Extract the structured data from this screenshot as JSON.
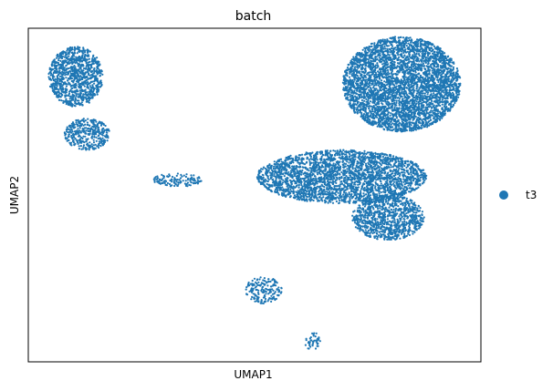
{
  "chart_data": {
    "type": "scatter",
    "title": "batch",
    "xlabel": "UMAP1",
    "ylabel": "UMAP2",
    "xlim": [
      0,
      100
    ],
    "ylim": [
      0,
      100
    ],
    "grid": false,
    "xticks": [],
    "yticks": [],
    "legend_position": "right",
    "series": [
      {
        "name": "t3",
        "color": "#1f77b4",
        "clusters": [
          {
            "id": "top-left-upper",
            "x": [
              4.5,
              16.5
            ],
            "y": [
              76.5,
              94.5
            ],
            "density": 0.9
          },
          {
            "id": "top-left-lower",
            "x": [
              8.0,
              18.0
            ],
            "y": [
              63.5,
              73.0
            ],
            "density": 0.7
          },
          {
            "id": "small-middle-left",
            "x": [
              27.5,
              38.5
            ],
            "y": [
              52.5,
              56.5
            ],
            "density": 0.5
          },
          {
            "id": "big-top-right",
            "x": [
              69.5,
              95.5
            ],
            "y": [
              69.0,
              97.5
            ],
            "density": 1.0
          },
          {
            "id": "middle-bridge",
            "x": [
              50.5,
              88.0
            ],
            "y": [
              47.5,
              63.5
            ],
            "density": 0.85
          },
          {
            "id": "right-lower-lobe",
            "x": [
              71.5,
              87.5
            ],
            "y": [
              36.5,
              50.0
            ],
            "density": 0.8
          },
          {
            "id": "bottom-streak",
            "x": [
              48.0,
              56.0
            ],
            "y": [
              17.5,
              25.5
            ],
            "density": 0.5
          },
          {
            "id": "bottom-tail",
            "x": [
              61.0,
              64.5
            ],
            "y": [
              3.5,
              9.0
            ],
            "density": 0.4
          }
        ]
      }
    ]
  }
}
